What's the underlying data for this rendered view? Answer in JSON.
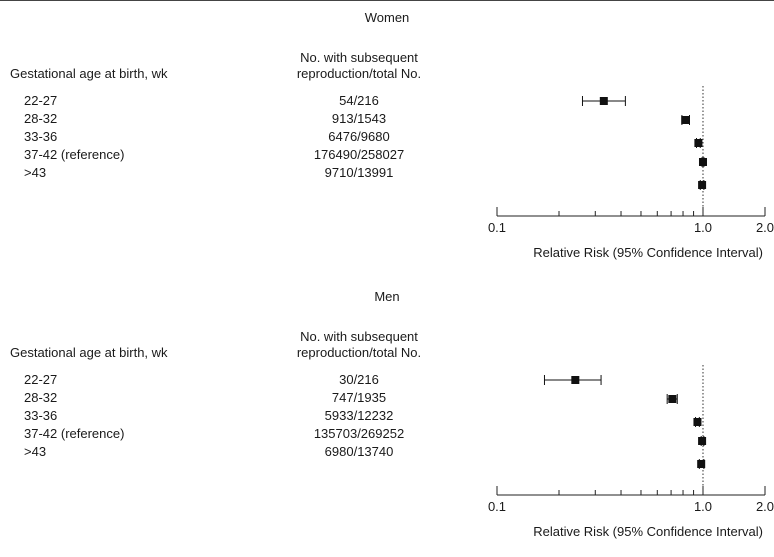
{
  "chart_data": [
    {
      "type": "scatter",
      "subtype": "forest-plot",
      "title": "Women",
      "row_header": "Gestational age at birth, wk",
      "count_header": [
        "No. with subsequent",
        "reproduction/total No."
      ],
      "categories": [
        "22-27",
        "28-32",
        "33-36",
        "37-42 (reference)",
        ">43"
      ],
      "counts": [
        "54/216",
        "913/1543",
        "6476/9680",
        "176490/258027",
        "9710/13991"
      ],
      "estimates": [
        0.33,
        0.82,
        0.95,
        1.0,
        0.99
      ],
      "ci_lower": [
        0.26,
        0.79,
        0.93,
        0.99,
        0.97
      ],
      "ci_upper": [
        0.42,
        0.86,
        0.97,
        1.01,
        1.01
      ],
      "xscale": "log",
      "xlim": [
        0.1,
        2.0
      ],
      "xticks": [
        "0.1",
        "1.0",
        "2.0"
      ],
      "reference_line": 1.0,
      "xlabel": "Relative Risk (95% Confidence Interval)"
    },
    {
      "type": "scatter",
      "subtype": "forest-plot",
      "title": "Men",
      "row_header": "Gestational age at birth, wk",
      "count_header": [
        "No. with subsequent",
        "reproduction/total No."
      ],
      "categories": [
        "22-27",
        "28-32",
        "33-36",
        "37-42 (reference)",
        ">43"
      ],
      "counts": [
        "30/216",
        "747/1935",
        "5933/12232",
        "135703/269252",
        "6980/13740"
      ],
      "estimates": [
        0.24,
        0.71,
        0.94,
        0.99,
        0.98
      ],
      "ci_lower": [
        0.17,
        0.67,
        0.92,
        0.98,
        0.96
      ],
      "ci_upper": [
        0.32,
        0.75,
        0.96,
        1.01,
        1.01
      ],
      "xscale": "log",
      "xlim": [
        0.1,
        2.0
      ],
      "xticks": [
        "0.1",
        "1.0",
        "2.0"
      ],
      "reference_line": 1.0,
      "xlabel": "Relative Risk (95% Confidence Interval)"
    }
  ]
}
